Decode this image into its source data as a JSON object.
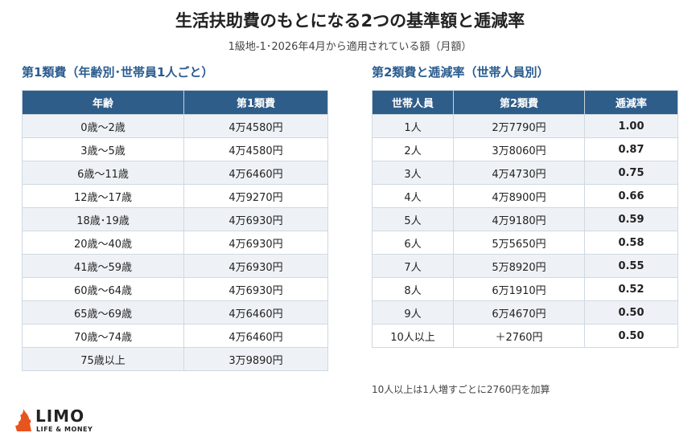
{
  "title": "生活扶助費のもとになる2つの基準額と逓減率",
  "subtitle": "1級地-1･2026年4月から適用されている額（月額）",
  "table1": {
    "heading": "第1類費（年齢別･世帯員1人ごと）",
    "headers": [
      "年齢",
      "第1類費"
    ],
    "rows": [
      [
        "0歳～2歳",
        "4万4580円"
      ],
      [
        "3歳～5歳",
        "4万4580円"
      ],
      [
        "6歳～11歳",
        "4万6460円"
      ],
      [
        "12歳～17歳",
        "4万9270円"
      ],
      [
        "18歳･19歳",
        "4万6930円"
      ],
      [
        "20歳～40歳",
        "4万6930円"
      ],
      [
        "41歳～59歳",
        "4万6930円"
      ],
      [
        "60歳～64歳",
        "4万6930円"
      ],
      [
        "65歳～69歳",
        "4万6460円"
      ],
      [
        "70歳～74歳",
        "4万6460円"
      ],
      [
        "75歳以上",
        "3万9890円"
      ]
    ]
  },
  "table2": {
    "heading": "第2類費と逓減率（世帯人員別）",
    "headers": [
      "世帯人員",
      "第2類費",
      "逓減率"
    ],
    "rows": [
      [
        "1人",
        "2万7790円",
        "1.00"
      ],
      [
        "2人",
        "3万8060円",
        "0.87"
      ],
      [
        "3人",
        "4万4730円",
        "0.75"
      ],
      [
        "4人",
        "4万8900円",
        "0.66"
      ],
      [
        "5人",
        "4万9180円",
        "0.59"
      ],
      [
        "6人",
        "5万5650円",
        "0.58"
      ],
      [
        "7人",
        "5万8920円",
        "0.55"
      ],
      [
        "8人",
        "6万1910円",
        "0.52"
      ],
      [
        "9人",
        "6万4670円",
        "0.50"
      ],
      [
        "10人以上",
        "＋2760円",
        "0.50"
      ]
    ]
  },
  "note": "10人以上は1人増すごとに2760円を加算",
  "logo": {
    "brand": "LIMO",
    "tagline": "LIFE & MONEY",
    "icon": "limo-flame-icon",
    "accent": "#e8541e"
  },
  "colors": {
    "header_bg": "#2f5d8a",
    "section_title": "#2b5c8f",
    "row_stripe": "#eef2f6"
  }
}
